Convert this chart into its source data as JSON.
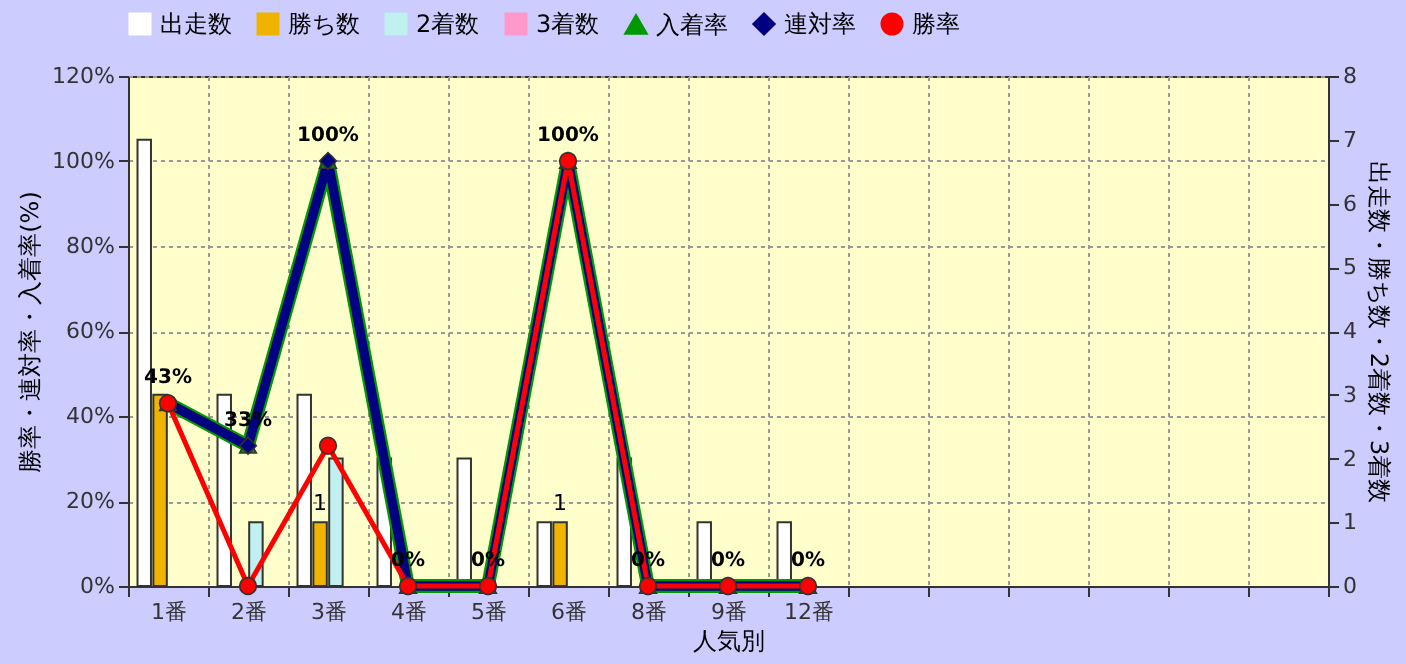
{
  "chart_data": {
    "type": "bar",
    "xlabel": "人気別",
    "ylabel": "勝率・連対率・入着率(%)",
    "y2label": "出走数・勝ち数・2着数・3着数",
    "categories": [
      "1番",
      "2番",
      "3番",
      "4番",
      "5番",
      "6番",
      "8番",
      "9番",
      "12番",
      null,
      null,
      null,
      null,
      null,
      null
    ],
    "series": [
      {
        "name": "出走数",
        "axis": "y2",
        "color": "#ffffff",
        "values": [
          7,
          3,
          3,
          2,
          2,
          1,
          2,
          1,
          1,
          null,
          null,
          null,
          null,
          null,
          null
        ]
      },
      {
        "name": "勝ち数",
        "axis": "y2",
        "color": "#f0b400",
        "values": [
          3,
          0,
          1,
          0,
          0,
          1,
          0,
          0,
          0,
          null,
          null,
          null,
          null,
          null,
          null
        ],
        "value_labels": [
          null,
          null,
          "1",
          null,
          null,
          "1",
          null,
          null,
          null,
          null,
          null,
          null,
          null,
          null,
          null
        ]
      },
      {
        "name": "2着数",
        "axis": "y2",
        "color": "#c0f0f0",
        "values": [
          0,
          1,
          2,
          0,
          0,
          0,
          0,
          0,
          0,
          null,
          null,
          null,
          null,
          null,
          null
        ]
      },
      {
        "name": "3着数",
        "axis": "y2",
        "color": "#ff99cc",
        "values": [
          0,
          0,
          0,
          0,
          0,
          0,
          0,
          0,
          0,
          null,
          null,
          null,
          null,
          null,
          null
        ]
      },
      {
        "name": "入着率",
        "type": "line",
        "color": "#009900",
        "marker": "triangle",
        "line_style": "solid",
        "values": [
          43,
          33,
          100,
          0,
          0,
          100,
          0,
          0,
          0,
          null,
          null,
          null,
          null,
          null,
          null
        ],
        "value_labels": [
          "43%",
          "33%",
          "100%",
          "0%",
          "0%",
          "100%",
          "0%",
          "0%",
          "0%",
          null,
          null,
          null,
          null,
          null,
          null
        ]
      },
      {
        "name": "連対率",
        "type": "line",
        "color": "#000080",
        "marker": "diamond",
        "line_style": "solid",
        "values": [
          43,
          33,
          100,
          0,
          0,
          100,
          0,
          0,
          0,
          null,
          null,
          null,
          null,
          null,
          null
        ]
      },
      {
        "name": "勝率",
        "type": "line",
        "color": "#ff0000",
        "marker": "circle",
        "line_style": "solid",
        "values": [
          43,
          0,
          33,
          0,
          0,
          100,
          0,
          0,
          0,
          null,
          null,
          null,
          null,
          null,
          null
        ]
      }
    ],
    "ylim": [
      0,
      120
    ],
    "yticks": [
      {
        "value": 0,
        "label": "0%"
      },
      {
        "value": 20,
        "label": "20%"
      },
      {
        "value": 40,
        "label": "40%"
      },
      {
        "value": 60,
        "label": "60%"
      },
      {
        "value": 80,
        "label": "80%"
      },
      {
        "value": 100,
        "label": "100%"
      },
      {
        "value": 120,
        "label": "120%"
      }
    ],
    "y2lim": [
      0,
      8
    ],
    "y2ticks": [
      0,
      1,
      2,
      3,
      4,
      5,
      6,
      7,
      8
    ],
    "grid": true,
    "legend": "top"
  }
}
